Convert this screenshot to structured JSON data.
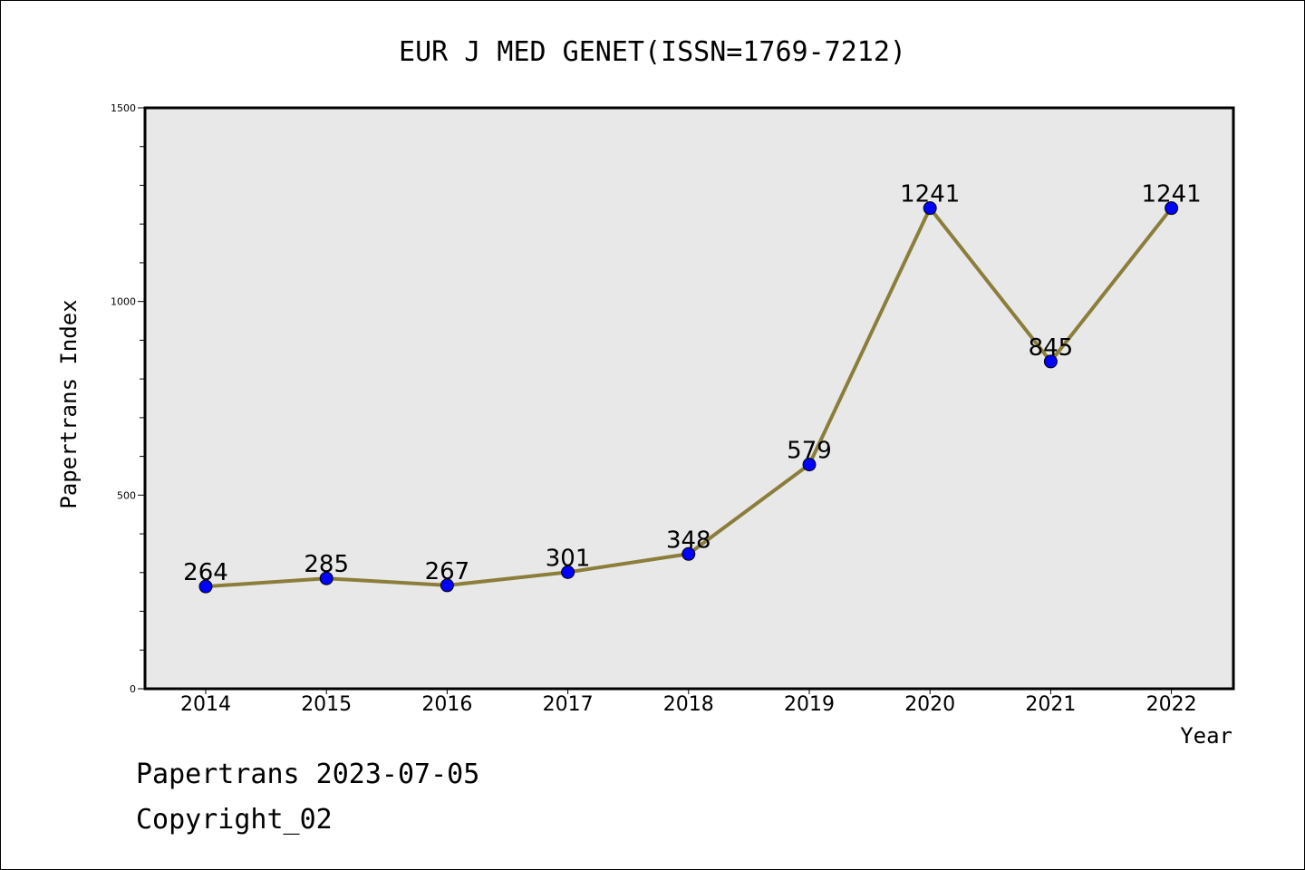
{
  "chart_data": {
    "type": "line",
    "title": "EUR J MED GENET(ISSN=1769-7212)",
    "xlabel": "Year",
    "ylabel": "Papertrans Index",
    "categories": [
      "2014",
      "2015",
      "2016",
      "2017",
      "2018",
      "2019",
      "2020",
      "2021",
      "2022"
    ],
    "values": [
      264,
      285,
      267,
      301,
      348,
      579,
      1241,
      845,
      1241
    ],
    "ylim": [
      0,
      1500
    ],
    "yticks": [
      "0",
      "500",
      "1000",
      "1500"
    ],
    "line_color": "#8B7D3A",
    "marker_color": "#0000FF",
    "plot_background": "#E8E8E8",
    "grid": false,
    "legend": "none"
  },
  "footer": {
    "date_line": "Papertrans 2023-07-05",
    "copyright_line": "Copyright_02"
  }
}
